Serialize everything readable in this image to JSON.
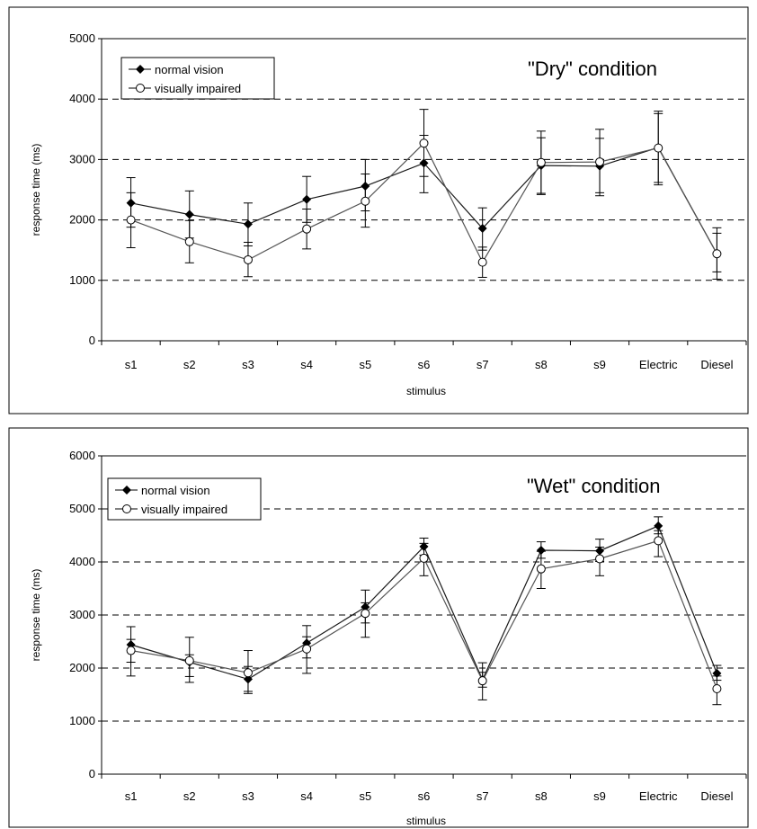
{
  "chart_data": [
    {
      "type": "line",
      "title": "\"Dry\" condition",
      "xlabel": "stimulus",
      "ylabel": "response time (ms)",
      "ylim": [
        0,
        5000
      ],
      "yticks": [
        0,
        1000,
        2000,
        3000,
        4000,
        5000
      ],
      "grid": "dashed-horizontal",
      "legend_position": "top-left",
      "categories": [
        "s1",
        "s2",
        "s3",
        "s4",
        "s5",
        "s6",
        "s7",
        "s8",
        "s9",
        "Electric",
        "Diesel"
      ],
      "series": [
        {
          "name": "normal vision",
          "marker": "filled-diamond",
          "values": [
            2280,
            2090,
            1930,
            2340,
            2560,
            2940,
            1860,
            2900,
            2890,
            3200,
            1440
          ],
          "error_low": [
            1880,
            1700,
            1570,
            1960,
            2150,
            2450,
            1500,
            2420,
            2400,
            2620,
            1140
          ],
          "error_high": [
            2700,
            2480,
            2280,
            2720,
            3000,
            3400,
            2200,
            3360,
            3350,
            3760,
            1780
          ]
        },
        {
          "name": "visually impaired",
          "marker": "open-circle",
          "values": [
            2000,
            1640,
            1340,
            1850,
            2310,
            3270,
            1300,
            2950,
            2960,
            3190,
            1440
          ],
          "error_low": [
            1540,
            1290,
            1060,
            1520,
            1880,
            2720,
            1050,
            2440,
            2450,
            2580,
            1020
          ],
          "error_high": [
            2450,
            1990,
            1630,
            2180,
            2760,
            3830,
            1550,
            3470,
            3500,
            3800,
            1870
          ]
        }
      ]
    },
    {
      "type": "line",
      "title": "\"Wet\" condition",
      "xlabel": "stimulus",
      "ylabel": "response time (ms)",
      "ylim": [
        0,
        6000
      ],
      "yticks": [
        0,
        1000,
        2000,
        3000,
        4000,
        5000,
        6000
      ],
      "grid": "dashed-horizontal",
      "legend_position": "top-left",
      "categories": [
        "s1",
        "s2",
        "s3",
        "s4",
        "s5",
        "s6",
        "s7",
        "s8",
        "s9",
        "Electric",
        "Diesel"
      ],
      "series": [
        {
          "name": "normal vision",
          "marker": "filled-diamond",
          "values": [
            2440,
            2110,
            1790,
            2470,
            3150,
            4290,
            1780,
            4220,
            4210,
            4680,
            1900
          ],
          "error_low": [
            2110,
            1730,
            1560,
            2190,
            2850,
            4130,
            1640,
            4070,
            4010,
            4530,
            1770
          ],
          "error_high": [
            2780,
            2580,
            2030,
            2800,
            3470,
            4450,
            1920,
            4380,
            4430,
            4850,
            2050
          ]
        },
        {
          "name": "visually impaired",
          "marker": "open-circle",
          "values": [
            2330,
            2140,
            1910,
            2360,
            3030,
            4070,
            1760,
            3870,
            4060,
            4400,
            1610
          ],
          "error_low": [
            1850,
            1840,
            1520,
            1900,
            2580,
            3740,
            1400,
            3500,
            3740,
            4100,
            1310
          ],
          "error_high": [
            2540,
            2250,
            2330,
            2590,
            3230,
            4350,
            2100,
            4200,
            4280,
            4590,
            1850
          ]
        }
      ]
    }
  ]
}
